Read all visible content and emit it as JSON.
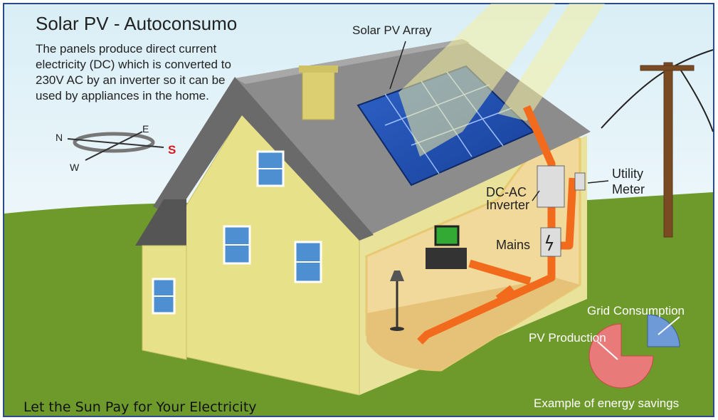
{
  "title": "Solar PV - Autoconsumo",
  "description": [
    "The panels produce direct current",
    "electricity (DC) which is converted to",
    "230V AC by an inverter so it can be",
    "used by appliances in the home."
  ],
  "labels": {
    "array": "Solar PV Array",
    "inverter": [
      "DC-AC",
      "Inverter"
    ],
    "meter": [
      "Utility",
      "Meter"
    ],
    "mains": "Mains"
  },
  "compass": {
    "n": "N",
    "e": "E",
    "w": "W",
    "s": "S"
  },
  "legend": {
    "grid": "Grid Consumption",
    "pv": "PV Production",
    "caption": "Example of energy savings"
  },
  "slogan": "Let the Sun Pay for Your Electricity"
}
